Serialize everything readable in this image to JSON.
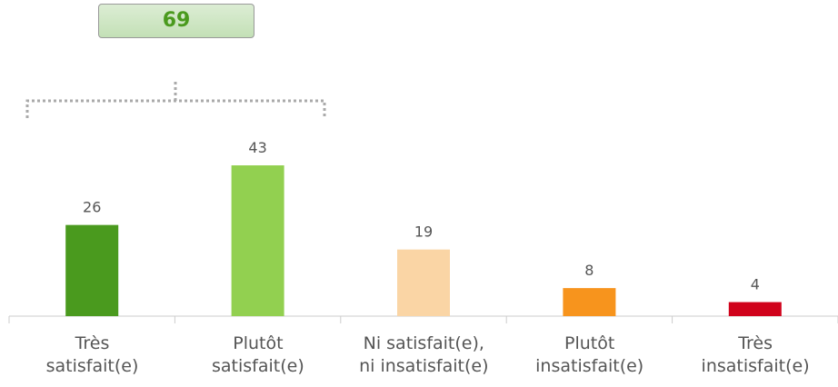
{
  "chart_data": {
    "type": "bar",
    "categories": [
      "Très\nsatisfait(e)",
      "Plutôt\nsatisfait(e)",
      "Ni satisfait(e),\nni insatisfait(e)",
      "Plutôt\ninsatisfait(e)",
      "Très\ninsatisfait(e)"
    ],
    "values": [
      26,
      43,
      19,
      8,
      4
    ],
    "colors": [
      "#4a9a1e",
      "#92d050",
      "#fad5a5",
      "#f7941d",
      "#d0021b"
    ],
    "group_total": 69
  }
}
